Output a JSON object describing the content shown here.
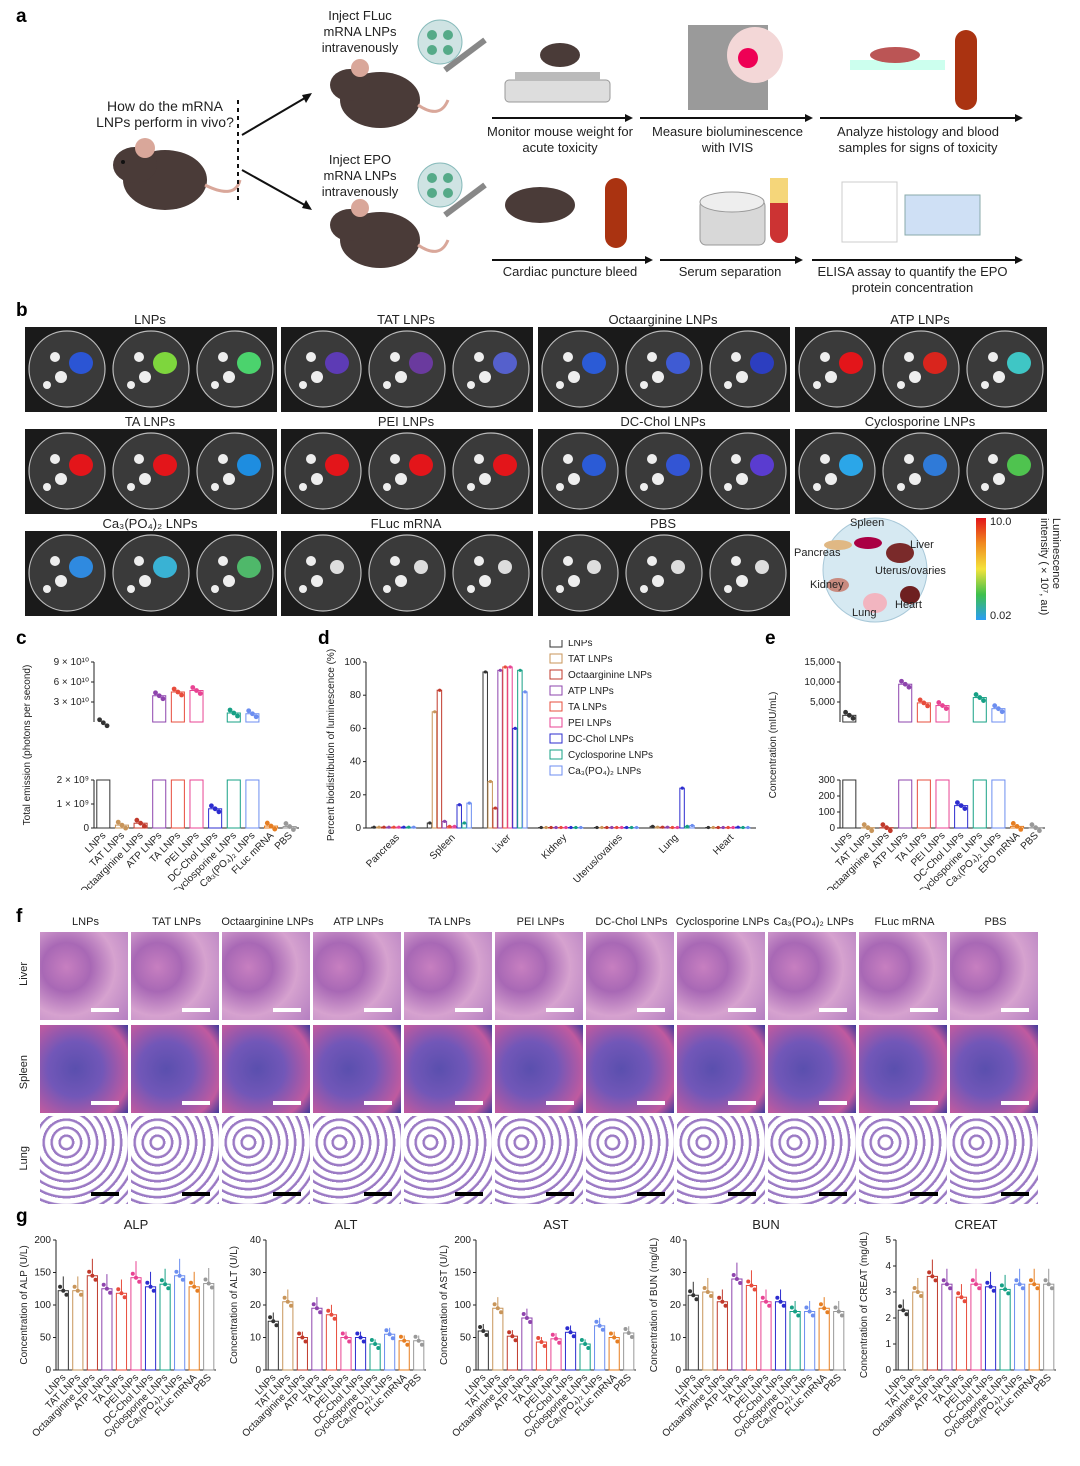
{
  "colors": {
    "LNPs": "#333333",
    "TAT LNPs": "#c8955a",
    "Octaarginine LNPs": "#c0392b",
    "ATP LNPs": "#8e44ad",
    "TA LNPs": "#e74c3c",
    "PEI LNPs": "#e84393",
    "DC-Chol LNPs": "#2c2ccf",
    "Cyclosporine LNPs": "#16a085",
    "Ca3(PO4)2 LNPs": "#6c8ef0",
    "FLuc mRNA": "#e67e22",
    "EPO mRNA": "#e67e22",
    "PBS": "#999999"
  },
  "panel_a": {
    "label": "a",
    "question": "How do the mRNA LNPs perform in vivo?",
    "inject_fluc": "Inject FLuc mRNA LNPs intravenously",
    "inject_epo": "Inject EPO mRNA LNPs intravenously",
    "steps_top": [
      "Monitor mouse weight for acute toxicity",
      "Measure bioluminescence with IVIS",
      "Analyze histology and blood samples for signs of toxicity"
    ],
    "steps_bottom": [
      "Cardiac puncture bleed",
      "Serum separation",
      "ELISA assay to quantify the EPO protein concentration"
    ]
  },
  "panel_b": {
    "label": "b",
    "groups": [
      "LNPs",
      "TAT LNPs",
      "Octaarginine LNPs",
      "ATP LNPs",
      "TA LNPs",
      "PEI LNPs",
      "DC-Chol LNPs",
      "Cyclosporine LNPs",
      "Ca3(PO4)2 LNPs",
      "FLuc mRNA",
      "PBS"
    ],
    "legend_organs": [
      "Spleen",
      "Pancreas",
      "Liver",
      "Kidney",
      "Uterus/ovaries",
      "Lung",
      "Heart"
    ],
    "scale_max": "10.0",
    "scale_min": "0.02",
    "scale_title": "Luminescence intensity (×10⁷, au)"
  },
  "chart_data": [
    {
      "id": "c",
      "type": "bar",
      "ylabel": "Total emission (photons per second)",
      "categories": [
        "LNPs",
        "TAT LNPs",
        "Octaarginine LNPs",
        "ATP LNPs",
        "TA LNPs",
        "PEI LNPs",
        "DC-Chol LNPs",
        "Cyclosporine LNPs",
        "Ca3(PO4)2 LNPs",
        "FLuc mRNA",
        "PBS"
      ],
      "values": [
        9000000000.0,
        120000000.0,
        200000000.0,
        45000000000.0,
        50000000000.0,
        52000000000.0,
        800000000.0,
        22000000000.0,
        21000000000.0,
        80000000.0,
        60000000.0
      ],
      "lower_axis": {
        "ticks": [
          "0",
          "1 × 10⁹",
          "2 × 10⁹"
        ],
        "range": [
          0,
          2000000000.0
        ]
      },
      "upper_axis": {
        "ticks": [
          "3 × 10¹⁰",
          "6 × 10¹⁰",
          "9 × 10¹⁰"
        ],
        "range": [
          10000000000.0,
          90000000000.0
        ]
      }
    },
    {
      "id": "d",
      "type": "bar",
      "ylabel": "Percent biodistribution of luminescence (%)",
      "categories": [
        "Pancreas",
        "Spleen",
        "Liver",
        "Kidney",
        "Uterus/ovaries",
        "Lung",
        "Heart"
      ],
      "yticks": [
        "0",
        "20",
        "40",
        "60",
        "80",
        "100"
      ],
      "ylim": [
        0,
        100
      ],
      "series": [
        {
          "name": "LNPs",
          "values": [
            0.5,
            3,
            94,
            0.3,
            0.3,
            1,
            0.3
          ]
        },
        {
          "name": "TAT LNPs",
          "values": [
            0.5,
            70,
            28,
            0.3,
            0.3,
            0.5,
            0.3
          ]
        },
        {
          "name": "Octaarginine LNPs",
          "values": [
            0.5,
            83,
            12,
            0.3,
            0.3,
            0.5,
            0.3
          ]
        },
        {
          "name": "ATP LNPs",
          "values": [
            0.5,
            4,
            95,
            0.3,
            0.3,
            0.5,
            0.3
          ]
        },
        {
          "name": "TA LNPs",
          "values": [
            0.5,
            1,
            97,
            0.3,
            0.3,
            0.3,
            0.3
          ]
        },
        {
          "name": "PEI LNPs",
          "values": [
            0.5,
            1,
            97,
            0.3,
            0.3,
            0.3,
            0.3
          ]
        },
        {
          "name": "DC-Chol LNPs",
          "values": [
            0.5,
            14,
            60,
            0.3,
            0.3,
            24,
            0.5
          ]
        },
        {
          "name": "Cyclosporine LNPs",
          "values": [
            0.5,
            3,
            95,
            0.3,
            0.3,
            1,
            0.3
          ]
        },
        {
          "name": "Ca3(PO4)2 LNPs",
          "values": [
            0.5,
            15,
            82,
            0.3,
            0.3,
            1.5,
            0.3
          ]
        }
      ]
    },
    {
      "id": "e",
      "type": "bar",
      "ylabel": "Concentration (mIU/mL)",
      "categories": [
        "LNPs",
        "TAT LNPs",
        "Octaarginine LNPs",
        "ATP LNPs",
        "TA LNPs",
        "PEI LNPs",
        "DC-Chol LNPs",
        "Cyclosporine LNPs",
        "Ca3(PO4)2 LNPs",
        "EPO mRNA",
        "PBS"
      ],
      "values": [
        3000,
        2,
        2,
        10000,
        5800,
        5200,
        140,
        7000,
        4500,
        10,
        2
      ],
      "lower_axis": {
        "ticks": [
          "0",
          "100",
          "200",
          "300"
        ],
        "range": [
          0,
          300
        ]
      },
      "upper_axis": {
        "ticks": [
          "5,000",
          "10,000",
          "15,000"
        ],
        "range": [
          1500,
          15000
        ]
      }
    },
    {
      "id": "g",
      "type": "bar",
      "title": "ALP",
      "ylabel": "Concentration of ALP (U/L)",
      "categories": [
        "LNPs",
        "TAT LNPs",
        "Octaarginine LNPs",
        "ATP LNPs",
        "TA LNPs",
        "PEI LNPs",
        "DC-Chol LNPs",
        "Cyclosporine LNPs",
        "Ca3(PO4)2 LNPs",
        "FLuc mRNA",
        "PBS"
      ],
      "values": [
        122,
        122,
        145,
        125,
        118,
        142,
        128,
        132,
        145,
        128,
        133
      ],
      "yticks": [
        "0",
        "50",
        "100",
        "150",
        "200"
      ],
      "ylim": [
        0,
        200
      ]
    },
    {
      "id": "g",
      "type": "bar",
      "title": "ALT",
      "ylabel": "Concentration of ALT (U/L)",
      "categories": [
        "LNPs",
        "TAT LNPs",
        "Octaarginine LNPs",
        "ATP LNPs",
        "TA LNPs",
        "PEI LNPs",
        "DC-Chol LNPs",
        "Cyclosporine LNPs",
        "Ca3(PO4)2 LNPs",
        "FLuc mRNA",
        "PBS"
      ],
      "values": [
        15,
        21,
        10,
        19,
        17,
        10,
        10,
        8,
        11,
        9,
        9
      ],
      "yticks": [
        "0",
        "10",
        "20",
        "30",
        "40"
      ],
      "ylim": [
        0,
        40
      ]
    },
    {
      "id": "g",
      "type": "bar",
      "title": "AST",
      "ylabel": "Concentration of AST (U/L)",
      "categories": [
        "LNPs",
        "TAT LNPs",
        "Octaarginine LNPs",
        "ATP LNPs",
        "TA LNPs",
        "PEI LNPs",
        "DC-Chol LNPs",
        "Cyclosporine LNPs",
        "Ca3(PO4)2 LNPs",
        "FLuc mRNA",
        "PBS"
      ],
      "values": [
        60,
        95,
        52,
        80,
        43,
        48,
        58,
        40,
        68,
        50,
        57
      ],
      "yticks": [
        "0",
        "50",
        "100",
        "150",
        "200"
      ],
      "ylim": [
        0,
        200
      ]
    },
    {
      "id": "g",
      "type": "bar",
      "title": "BUN",
      "ylabel": "Concentration of BUN (mg/dL)",
      "categories": [
        "LNPs",
        "TAT LNPs",
        "Octaarginine LNPs",
        "ATP LNPs",
        "TA LNPs",
        "PEI LNPs",
        "DC-Chol LNPs",
        "Cyclosporine LNPs",
        "Ca3(PO4)2 LNPs",
        "FLuc mRNA",
        "PBS"
      ],
      "values": [
        23,
        24,
        21,
        28,
        26,
        21,
        21,
        18,
        18,
        19,
        18
      ],
      "yticks": [
        "0",
        "10",
        "20",
        "30",
        "40"
      ],
      "ylim": [
        0,
        40
      ]
    },
    {
      "id": "g",
      "type": "bar",
      "title": "CREAT",
      "ylabel": "Concentration of CREAT (mg/dL)",
      "categories": [
        "LNPs",
        "TAT LNPs",
        "Octaarginine LNPs",
        "ATP LNPs",
        "TA LNPs",
        "PEI LNPs",
        "DC-Chol LNPs",
        "Cyclosporine LNPs",
        "Ca3(PO4)2 LNPs",
        "FLuc mRNA",
        "PBS"
      ],
      "values": [
        2.3,
        3.0,
        3.6,
        3.3,
        2.8,
        3.3,
        3.2,
        3.1,
        3.3,
        3.3,
        3.3
      ],
      "yticks": [
        "0",
        "1",
        "2",
        "3",
        "4",
        "5"
      ],
      "ylim": [
        0,
        5
      ]
    }
  ],
  "panel_c": {
    "label": "c"
  },
  "panel_d": {
    "label": "d"
  },
  "panel_e": {
    "label": "e"
  },
  "panel_f": {
    "label": "f",
    "columns": [
      "LNPs",
      "TAT LNPs",
      "Octaarginine LNPs",
      "ATP LNPs",
      "TA LNPs",
      "PEI LNPs",
      "DC-Chol LNPs",
      "Cyclosporine LNPs",
      "Ca3(PO4)2 LNPs",
      "FLuc mRNA",
      "PBS"
    ],
    "rows": [
      "Liver",
      "Spleen",
      "Lung"
    ]
  },
  "panel_g": {
    "label": "g"
  }
}
